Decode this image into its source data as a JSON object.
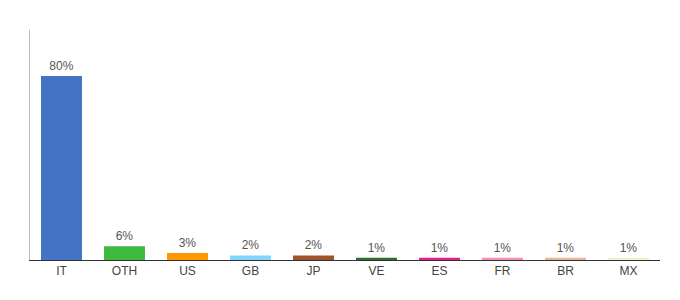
{
  "chart_data": {
    "type": "bar",
    "categories": [
      "IT",
      "OTH",
      "US",
      "GB",
      "JP",
      "VE",
      "ES",
      "FR",
      "BR",
      "MX"
    ],
    "values": [
      80,
      6,
      3,
      2,
      2,
      1,
      1,
      1,
      1,
      1
    ],
    "value_labels": [
      "80%",
      "6%",
      "3%",
      "2%",
      "2%",
      "1%",
      "1%",
      "1%",
      "1%",
      "1%"
    ],
    "colors": [
      "#4472c4",
      "#3dba3d",
      "#ff9800",
      "#81d4fa",
      "#a0522d",
      "#2d6e2d",
      "#e91e8c",
      "#f48fb1",
      "#e8b49a",
      "#f0f0d0"
    ],
    "ylim": [
      0,
      100
    ],
    "data_labels": true,
    "tick_labels": "x",
    "grid": false
  }
}
